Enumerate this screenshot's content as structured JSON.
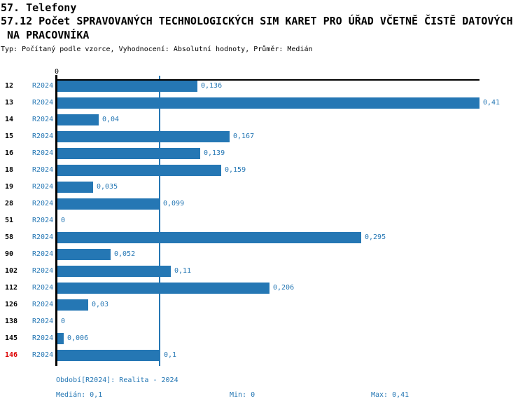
{
  "title": {
    "line1": "57. Telefony",
    "line2": "57.12 Počet SPRAVOVANÝCH TECHNOLOGICKÝCH SIM KARET PRO ÚŘAD VČETNĚ ČISTĚ DATOVÝCH",
    "line3": "NA PRACOVNÍKA",
    "subtitle": "Typ: Počítaný podle vzorce, Vyhodnocení: Absolutní hodnoty, Průměr: Medián"
  },
  "chart_data": {
    "type": "bar",
    "orientation": "horizontal",
    "series_label": "R2024",
    "categories": [
      "12",
      "13",
      "14",
      "15",
      "16",
      "18",
      "19",
      "28",
      "51",
      "58",
      "90",
      "102",
      "112",
      "126",
      "138",
      "145",
      "146"
    ],
    "values": [
      0.136,
      0.41,
      0.04,
      0.167,
      0.139,
      0.159,
      0.035,
      0.099,
      0,
      0.295,
      0.052,
      0.11,
      0.206,
      0.03,
      0,
      0.006,
      0.1
    ],
    "value_labels": [
      "0,136",
      "0,41",
      "0,04",
      "0,167",
      "0,139",
      "0,159",
      "0,035",
      "0,099",
      "0",
      "0,295",
      "0,052",
      "0,11",
      "0,206",
      "0,03",
      "0",
      "0,006",
      "0,1"
    ],
    "xlim": [
      0,
      0.41
    ],
    "origin_tick_label": "0",
    "median_value": 0.1,
    "highlighted_category": "146",
    "grid": false,
    "legend": "none",
    "bar_color": "#2577b4",
    "label_color": "#2577b4",
    "highlight_color": "#dd0000",
    "axis_color": "#000000"
  },
  "footer": {
    "period": "Období[R2024]: Realita - 2024",
    "median": "Medián: 0,1",
    "min": "Min: 0",
    "max": "Max: 0,41"
  }
}
